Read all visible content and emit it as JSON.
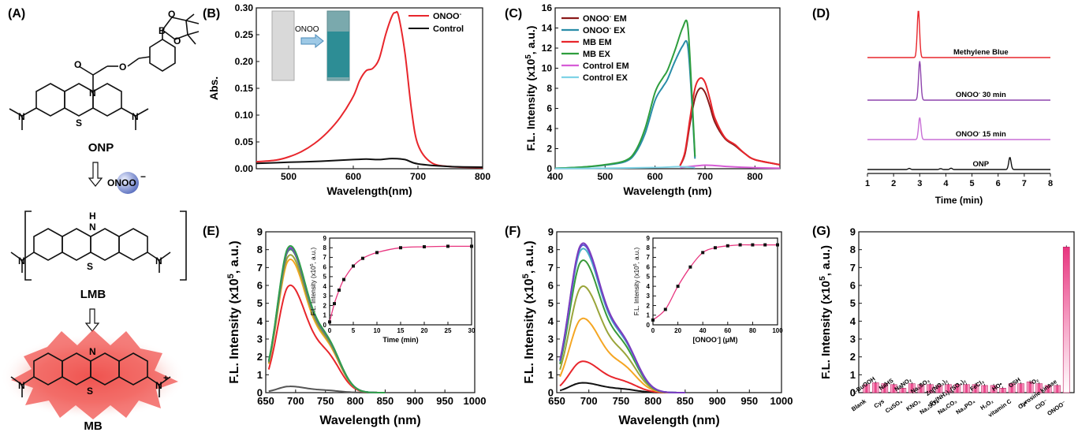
{
  "panel_labels": [
    "(A)",
    "(B)",
    "(C)",
    "(D)",
    "(E)",
    "(F)",
    "(G)"
  ],
  "scheme": {
    "onp_label": "ONP",
    "reagent_label": "ONOO",
    "reagent_charge": "−",
    "lmb_label": "LMB",
    "mb_label": "MB",
    "atoms": {
      "B": "B",
      "O": "O",
      "N": "N",
      "S": "S",
      "H": "H",
      "plus": "+"
    }
  },
  "chart_data": [
    {
      "id": "B",
      "type": "line",
      "xlabel": "Wavelength(nm)",
      "ylabel": "Abs.",
      "xlim": [
        450,
        800
      ],
      "ylim": [
        0,
        0.3
      ],
      "xticks": [
        500,
        600,
        700,
        800
      ],
      "yticks": [
        0.0,
        0.05,
        0.1,
        0.15,
        0.2,
        0.25,
        0.3
      ],
      "ytick_labels": [
        "0.00",
        "0.05",
        "0.10",
        "0.15",
        "0.20",
        "0.25",
        "0.30"
      ],
      "legend": "top-right",
      "inset_photo": {
        "arrow_label": "ONOO"
      },
      "series": [
        {
          "name": "ONOO",
          "name_sup": "-",
          "color": "#e8262c",
          "x": [
            450,
            480,
            500,
            520,
            540,
            560,
            580,
            600,
            610,
            620,
            630,
            640,
            650,
            660,
            665,
            670,
            680,
            690,
            700,
            720,
            750,
            800
          ],
          "y": [
            0.013,
            0.016,
            0.022,
            0.032,
            0.047,
            0.068,
            0.096,
            0.135,
            0.165,
            0.183,
            0.187,
            0.205,
            0.25,
            0.285,
            0.291,
            0.285,
            0.215,
            0.11,
            0.045,
            0.012,
            0.004,
            0.002
          ]
        },
        {
          "name": "Control",
          "color": "#111111",
          "x": [
            450,
            500,
            550,
            600,
            620,
            640,
            660,
            680,
            700,
            750,
            800
          ],
          "y": [
            0.01,
            0.012,
            0.014,
            0.017,
            0.018,
            0.017,
            0.019,
            0.017,
            0.009,
            0.004,
            0.003
          ]
        }
      ]
    },
    {
      "id": "C",
      "type": "line",
      "xlabel": "Wavelength (nm)",
      "ylabel": "F.L. Intensity (x10",
      "ylabel_sup": "5",
      "ylabel_tail": ", a.u.)",
      "xlim": [
        400,
        850
      ],
      "ylim": [
        0,
        16
      ],
      "xticks": [
        400,
        500,
        600,
        700,
        800
      ],
      "yticks": [
        0,
        2,
        4,
        6,
        8,
        10,
        12,
        14,
        16
      ],
      "legend": "top-left",
      "series": [
        {
          "name": "ONOO",
          "name_sup": "-",
          "name_tail": " EM",
          "color": "#8b1a1a",
          "x": [
            650,
            660,
            670,
            680,
            690,
            700,
            710,
            720,
            740,
            760,
            780,
            800,
            850
          ],
          "y": [
            0.3,
            1.5,
            4.5,
            7.0,
            8.0,
            7.6,
            6.2,
            4.6,
            3.0,
            2.3,
            1.5,
            0.9,
            0.4
          ]
        },
        {
          "name": "ONOO",
          "name_sup": "-",
          "name_tail": " EX",
          "color": "#2a8da8",
          "x": [
            400,
            450,
            500,
            540,
            560,
            580,
            600,
            615,
            625,
            640,
            655,
            665,
            672,
            680
          ],
          "y": [
            0.05,
            0.15,
            0.35,
            0.7,
            1.5,
            3.5,
            6.8,
            8.1,
            8.9,
            10.7,
            12.2,
            12.4,
            8.0,
            1.0
          ]
        },
        {
          "name": "MB EM",
          "color": "#e8262c",
          "x": [
            650,
            660,
            670,
            680,
            690,
            700,
            710,
            720,
            740,
            760,
            780,
            800,
            850
          ],
          "y": [
            0.3,
            1.7,
            5.0,
            8.0,
            9.0,
            8.6,
            6.9,
            5.0,
            3.1,
            2.4,
            1.5,
            0.9,
            0.4
          ]
        },
        {
          "name": "MB EX",
          "color": "#2e9e3e",
          "x": [
            400,
            450,
            500,
            540,
            560,
            580,
            600,
            615,
            625,
            640,
            655,
            665,
            672,
            680
          ],
          "y": [
            0.05,
            0.15,
            0.4,
            0.8,
            1.7,
            4.0,
            7.6,
            9.0,
            9.8,
            11.8,
            14.0,
            14.4,
            9.0,
            1.2
          ]
        },
        {
          "name": "Control EM",
          "color": "#d65cd6",
          "x": [
            650,
            700,
            750,
            800,
            850
          ],
          "y": [
            0.1,
            0.35,
            0.2,
            0.1,
            0.05
          ]
        },
        {
          "name": "Control EX",
          "color": "#7fd3e6",
          "x": [
            400,
            500,
            600,
            650,
            680
          ],
          "y": [
            0.02,
            0.05,
            0.12,
            0.2,
            0.1
          ]
        }
      ]
    },
    {
      "id": "D",
      "type": "line",
      "xlabel": "Time (min)",
      "xlim": [
        1,
        8
      ],
      "xticks": [
        1,
        2,
        3,
        4,
        5,
        6,
        7,
        8
      ],
      "traces": [
        {
          "label": "Methylene Blue",
          "color": "#e8262c",
          "peaks": [
            {
              "t": 2.95,
              "h": 1.0
            }
          ]
        },
        {
          "label": "ONOO",
          "label_sup": "-",
          "label_tail": " 30 min",
          "color": "#8e44ad",
          "peaks": [
            {
              "t": 3.0,
              "h": 0.95
            }
          ]
        },
        {
          "label": "ONOO",
          "label_sup": "-",
          "label_tail": " 15 min",
          "color": "#c86fd6",
          "peaks": [
            {
              "t": 3.0,
              "h": 0.7
            }
          ]
        },
        {
          "label": "ONP",
          "color": "#111111",
          "peaks": [
            {
              "t": 2.6,
              "h": 0.05
            },
            {
              "t": 3.8,
              "h": 0.04
            },
            {
              "t": 4.2,
              "h": 0.06
            },
            {
              "t": 6.45,
              "h": 0.55
            }
          ]
        }
      ]
    },
    {
      "id": "E",
      "type": "line",
      "xlabel": "Wavelength (nm)",
      "ylabel": "F.L. Intensity (x10",
      "ylabel_sup": "5",
      "ylabel_tail": ", a.u.)",
      "xlim": [
        650,
        1000
      ],
      "ylim": [
        0,
        9
      ],
      "xticks": [
        650,
        700,
        750,
        800,
        850,
        900,
        950,
        1000
      ],
      "yticks": [
        0,
        1,
        2,
        3,
        4,
        5,
        6,
        7,
        8,
        9
      ],
      "series": [
        {
          "color": "#555555",
          "peak": 0.35
        },
        {
          "color": "#e8262c",
          "peak": 6.0
        },
        {
          "color": "#f5a623",
          "peak": 7.45
        },
        {
          "color": "#9aa53a",
          "peak": 7.7
        },
        {
          "color": "#3a9a3a",
          "peak": 8.0
        },
        {
          "color": "#4a6fb0",
          "peak": 8.05
        },
        {
          "color": "#8a3dbf",
          "peak": 8.1
        },
        {
          "color": "#2fa04a",
          "peak": 8.2
        }
      ],
      "inset": {
        "xlabel": "Time (min)",
        "ylabel": "F.L. Intensity (x10",
        "ylabel_sup": "5",
        "ylabel_tail": ", a.u.)",
        "xlim": [
          0,
          30
        ],
        "ylim": [
          0,
          9
        ],
        "xticks": [
          0,
          5,
          10,
          15,
          20,
          25,
          30
        ],
        "yticks": [
          0,
          1,
          2,
          3,
          4,
          5,
          6,
          7,
          8,
          9
        ],
        "x": [
          0,
          1,
          2,
          3,
          5,
          7,
          10,
          15,
          20,
          25,
          30
        ],
        "y": [
          0.3,
          2.2,
          3.6,
          4.7,
          6.1,
          6.9,
          7.5,
          8.0,
          8.1,
          8.15,
          8.15
        ]
      }
    },
    {
      "id": "F",
      "type": "line",
      "xlabel": "Wavelength (nm)",
      "ylabel": "F.L. Intensity (x10",
      "ylabel_sup": "5",
      "ylabel_tail": ", a.u.)",
      "xlim": [
        650,
        1000
      ],
      "ylim": [
        0,
        9
      ],
      "xticks": [
        650,
        700,
        750,
        800,
        850,
        900,
        950,
        1000
      ],
      "yticks": [
        0,
        1,
        2,
        3,
        4,
        5,
        6,
        7,
        8,
        9
      ],
      "series": [
        {
          "color": "#111111",
          "peak": 0.55
        },
        {
          "color": "#e8262c",
          "peak": 1.75
        },
        {
          "color": "#f5a623",
          "peak": 4.15
        },
        {
          "color": "#9aa53a",
          "peak": 5.95
        },
        {
          "color": "#3a9a3a",
          "peak": 7.4
        },
        {
          "color": "#4ab3c7",
          "peak": 8.05
        },
        {
          "color": "#5a5ad0",
          "peak": 8.25
        },
        {
          "color": "#7a3dbf",
          "peak": 8.35
        }
      ],
      "inset": {
        "xlabel": "[ONOO",
        "xlabel_sup": "-",
        "xlabel_tail": "] (μM)",
        "ylabel": "F.L. Intensity (x10",
        "ylabel_sup": "5",
        "ylabel_tail": ", a.u.)",
        "xlim": [
          0,
          100
        ],
        "ylim": [
          0,
          9
        ],
        "xticks": [
          0,
          20,
          40,
          60,
          80,
          100
        ],
        "yticks": [
          0,
          1,
          2,
          3,
          4,
          5,
          6,
          7,
          8,
          9
        ],
        "x": [
          0,
          10,
          20,
          30,
          40,
          50,
          60,
          70,
          80,
          90,
          100
        ],
        "y": [
          0.5,
          1.6,
          4.0,
          6.0,
          7.5,
          8.0,
          8.2,
          8.3,
          8.3,
          8.3,
          8.3
        ]
      }
    },
    {
      "id": "G",
      "type": "bar",
      "ylabel": "F.L. Intensity (x10",
      "ylabel_sup": "5",
      "ylabel_tail": ", a.u.)",
      "ylim": [
        0,
        9
      ],
      "yticks": [
        0,
        1,
        2,
        3,
        4,
        5,
        6,
        7,
        8,
        9
      ],
      "categories": [
        "Blank",
        "t-BuOOH",
        "Cys",
        "NaHS",
        "CuSO₄",
        "NaNO₂",
        "KNO₃",
        "Na₂SO₃",
        "Na₂SO₄",
        "Zn(NO₃)₂",
        "Na₂CO₃",
        "Fe(NH₄)₂(SO₄)₂",
        "Na₃PO₄",
        "FeCl₃",
        "H₂O₂",
        "HO•",
        "vitamin C",
        "GSH",
        "O₂•⁻",
        "¹O₂",
        "ClO⁻",
        "tyrosine kinase",
        "ONOO⁻"
      ],
      "values": [
        0.45,
        0.55,
        0.5,
        0.45,
        0.25,
        0.5,
        0.45,
        0.45,
        0.4,
        0.45,
        0.45,
        0.45,
        0.45,
        0.4,
        0.4,
        0.25,
        0.5,
        0.5,
        0.6,
        0.5,
        0.4,
        0.4,
        8.15
      ],
      "bar_color": "#e8357f"
    }
  ]
}
